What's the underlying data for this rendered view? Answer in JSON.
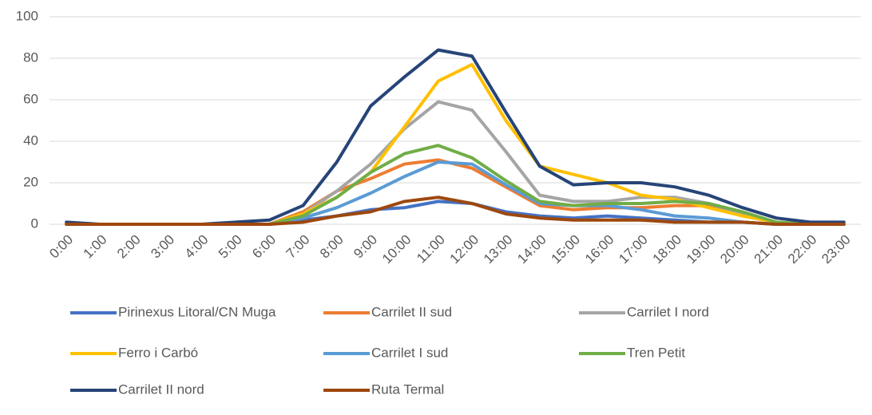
{
  "chart_data": {
    "type": "line",
    "categories": [
      "0:00",
      "1:00",
      "2:00",
      "3:00",
      "4:00",
      "5:00",
      "6:00",
      "7:00",
      "8:00",
      "9:00",
      "10:00",
      "11:00",
      "12:00",
      "13:00",
      "14:00",
      "15:00",
      "16:00",
      "17:00",
      "18:00",
      "19:00",
      "20:00",
      "21:00",
      "22:00",
      "23:00"
    ],
    "series": [
      {
        "name": "Pirinexus Litoral/CN Muga",
        "color": "#4472c4",
        "values": [
          0,
          0,
          0,
          0,
          0,
          0,
          0,
          2,
          4,
          7,
          8,
          11,
          10,
          6,
          4,
          3,
          4,
          3,
          2,
          1,
          1,
          0,
          0,
          0
        ]
      },
      {
        "name": "Carrilet II sud",
        "color": "#ed7d31",
        "values": [
          0,
          0,
          0,
          0,
          0,
          0,
          0,
          6,
          16,
          22,
          29,
          31,
          27,
          18,
          9,
          7,
          8,
          8,
          9,
          9,
          5,
          1,
          0,
          0
        ]
      },
      {
        "name": "Carrilet I nord",
        "color": "#a5a5a5",
        "values": [
          0,
          0,
          0,
          0,
          0,
          0,
          0,
          5,
          16,
          29,
          46,
          59,
          55,
          35,
          14,
          11,
          11,
          13,
          13,
          10,
          5,
          1,
          0,
          0
        ]
      },
      {
        "name": "Ferro i Carbó",
        "color": "#ffc000",
        "values": [
          0,
          0,
          0,
          0,
          0,
          0,
          0,
          5,
          13,
          25,
          47,
          69,
          77,
          50,
          28,
          24,
          20,
          14,
          12,
          8,
          4,
          1,
          0,
          0
        ]
      },
      {
        "name": "Carrilet I sud",
        "color": "#5b9bd5",
        "values": [
          0,
          0,
          0,
          0,
          0,
          0,
          0,
          3,
          8,
          15,
          23,
          30,
          29,
          19,
          10,
          9,
          9,
          7,
          4,
          3,
          1,
          0,
          0,
          0
        ]
      },
      {
        "name": "Tren Petit",
        "color": "#70ad47",
        "values": [
          0,
          0,
          0,
          0,
          0,
          0,
          0,
          4,
          13,
          25,
          34,
          38,
          32,
          21,
          11,
          9,
          10,
          10,
          11,
          10,
          6,
          1,
          0,
          0
        ]
      },
      {
        "name": "Carrilet II nord",
        "color": "#264478",
        "values": [
          1,
          0,
          0,
          0,
          0,
          1,
          2,
          9,
          30,
          57,
          71,
          84,
          81,
          54,
          28,
          19,
          20,
          20,
          18,
          14,
          8,
          3,
          1,
          1
        ]
      },
      {
        "name": "Ruta Termal",
        "color": "#9e480e",
        "values": [
          0,
          0,
          0,
          0,
          0,
          0,
          0,
          1,
          4,
          6,
          11,
          13,
          10,
          5,
          3,
          2,
          2,
          2,
          1,
          1,
          1,
          0,
          0,
          0
        ]
      }
    ],
    "ylim": [
      0,
      100
    ],
    "yticks": [
      0,
      20,
      40,
      60,
      80,
      100
    ],
    "grid": true
  }
}
